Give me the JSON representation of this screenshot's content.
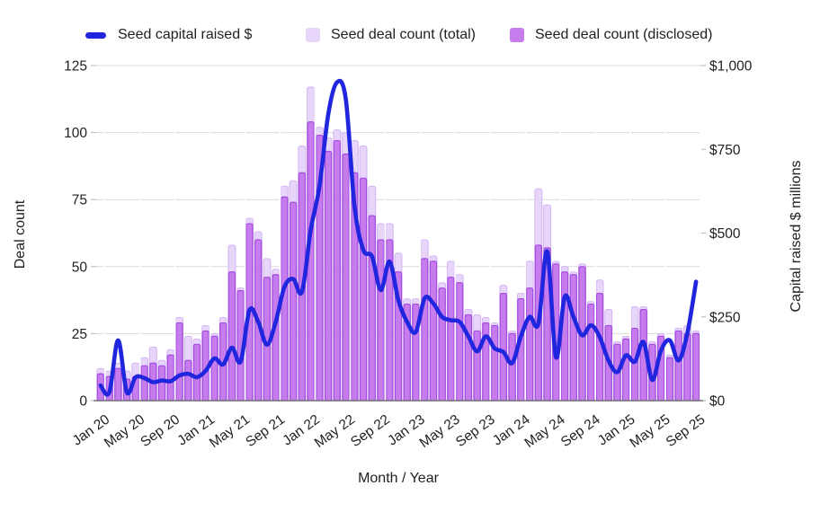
{
  "colors": {
    "line": "#2026dd",
    "bar_total_fill": "#e8d6fa",
    "bar_total_stroke": "#d2b4f4",
    "bar_disclosed_fill": "#c67ced",
    "bar_disclosed_stroke": "#a44be0",
    "grid": "#d9d9d9",
    "baseline": "#757575",
    "tick_stub": "#b7b7b7",
    "text": "#202124",
    "month_tick_line": "#ffffff"
  },
  "legend": [
    {
      "label": "Seed capital raised $",
      "swatch": "line",
      "color": "#2026dd"
    },
    {
      "label": "Seed deal count (total)",
      "swatch": "box",
      "color": "#e8d6fa"
    },
    {
      "label": "Seed deal count (disclosed)",
      "swatch": "box",
      "color": "#c67ced"
    }
  ],
  "axes": {
    "left_title": "Deal count",
    "right_title": "Capital raised $ millions",
    "bottom_title": "Month / Year",
    "left_ticks": [
      "0",
      "25",
      "50",
      "75",
      "100",
      "125"
    ],
    "left_tick_values": [
      0,
      25,
      50,
      75,
      100,
      125
    ],
    "left_max": 125,
    "right_ticks": [
      "$0",
      "$250",
      "$500",
      "$750",
      "$1,000"
    ],
    "right_tick_values": [
      0,
      250,
      500,
      750,
      1000
    ],
    "right_max": 1000,
    "x_label_every": 4
  },
  "chart_data": {
    "type": "combo-bar-line",
    "categories": [
      "Jan 20",
      "Feb 20",
      "Mar 20",
      "Apr 20",
      "May 20",
      "Jun 20",
      "Jul 20",
      "Aug 20",
      "Sep 20",
      "Oct 20",
      "Nov 20",
      "Dec 20",
      "Jan 21",
      "Feb 21",
      "Mar 21",
      "Apr 21",
      "May 21",
      "Jun 21",
      "Jul 21",
      "Aug 21",
      "Sep 21",
      "Oct 21",
      "Nov 21",
      "Dec 21",
      "Jan 22",
      "Feb 22",
      "Mar 22",
      "Apr 22",
      "May 22",
      "Jun 22",
      "Jul 22",
      "Aug 22",
      "Sep 22",
      "Oct 22",
      "Nov 22",
      "Dec 22",
      "Jan 23",
      "Feb 23",
      "Mar 23",
      "Apr 23",
      "May 23",
      "Jun 23",
      "Jul 23",
      "Aug 23",
      "Sep 23",
      "Oct 23",
      "Nov 23",
      "Dec 23",
      "Jan 24",
      "Feb 24",
      "Mar 24",
      "Apr 24",
      "May 24",
      "Jun 24",
      "Jul 24",
      "Aug 24",
      "Sep 24",
      "Oct 24",
      "Nov 24",
      "Dec 24",
      "Jan 25",
      "Feb 25",
      "Mar 25",
      "Apr 25",
      "May 25",
      "Jun 25",
      "Jul 25",
      "Aug 25",
      "Sep 25"
    ],
    "x_tick_labels": [
      "Jan 20",
      "May 20",
      "Sep 20",
      "Jan 21",
      "May 21",
      "Sep 21",
      "Jan 22",
      "May 22",
      "Sep 22",
      "Jan 23",
      "May 23",
      "Sep 23",
      "Jan 24",
      "May 24",
      "Sep 24",
      "Jan 25",
      "May 25",
      "Sep 25"
    ],
    "series": [
      {
        "name": "Seed capital raised $",
        "type": "line",
        "axis": "right",
        "unit": "$ millions",
        "values": [
          45,
          25,
          180,
          25,
          70,
          67,
          55,
          60,
          58,
          75,
          80,
          70,
          89,
          126,
          108,
          158,
          117,
          270,
          235,
          167,
          235,
          340,
          363,
          325,
          510,
          640,
          855,
          950,
          900,
          580,
          450,
          430,
          330,
          415,
          300,
          235,
          205,
          305,
          290,
          250,
          240,
          235,
          192,
          147,
          192,
          156,
          145,
          112,
          192,
          250,
          230,
          445,
          130,
          310,
          250,
          195,
          225,
          190,
          120,
          85,
          135,
          116,
          175,
          62,
          150,
          180,
          120,
          200,
          355
        ]
      },
      {
        "name": "Seed deal count (total)",
        "type": "bar",
        "axis": "left",
        "values": [
          12,
          11,
          14,
          11,
          14,
          16,
          20,
          15,
          19,
          31,
          24,
          23,
          28,
          25,
          31,
          58,
          42,
          68,
          63,
          53,
          49,
          80,
          82,
          95,
          117,
          102,
          98,
          101,
          100,
          97,
          95,
          80,
          66,
          66,
          55,
          38,
          38,
          60,
          54,
          44,
          52,
          47,
          34,
          32,
          31,
          29,
          43,
          26,
          40,
          52,
          79,
          73,
          52,
          50,
          48,
          51,
          37,
          45,
          34,
          22,
          24,
          35,
          35,
          22,
          25,
          17,
          27,
          28,
          26
        ]
      },
      {
        "name": "Seed deal count (disclosed)",
        "type": "bar",
        "axis": "left",
        "values": [
          10,
          9,
          12,
          8,
          9,
          13,
          14,
          13,
          17,
          29,
          15,
          21,
          26,
          24,
          29,
          48,
          41,
          66,
          60,
          46,
          47,
          76,
          74,
          85,
          104,
          99,
          93,
          97,
          92,
          85,
          83,
          69,
          60,
          60,
          48,
          36,
          36,
          53,
          52,
          42,
          46,
          44,
          32,
          26,
          29,
          28,
          40,
          25,
          38,
          42,
          58,
          57,
          51,
          48,
          47,
          50,
          36,
          40,
          28,
          21,
          23,
          27,
          34,
          21,
          24,
          16,
          26,
          25,
          25
        ]
      }
    ],
    "ylim_left": [
      0,
      125
    ],
    "ylim_right": [
      0,
      1000
    ],
    "grid": true,
    "legend_position": "top"
  }
}
